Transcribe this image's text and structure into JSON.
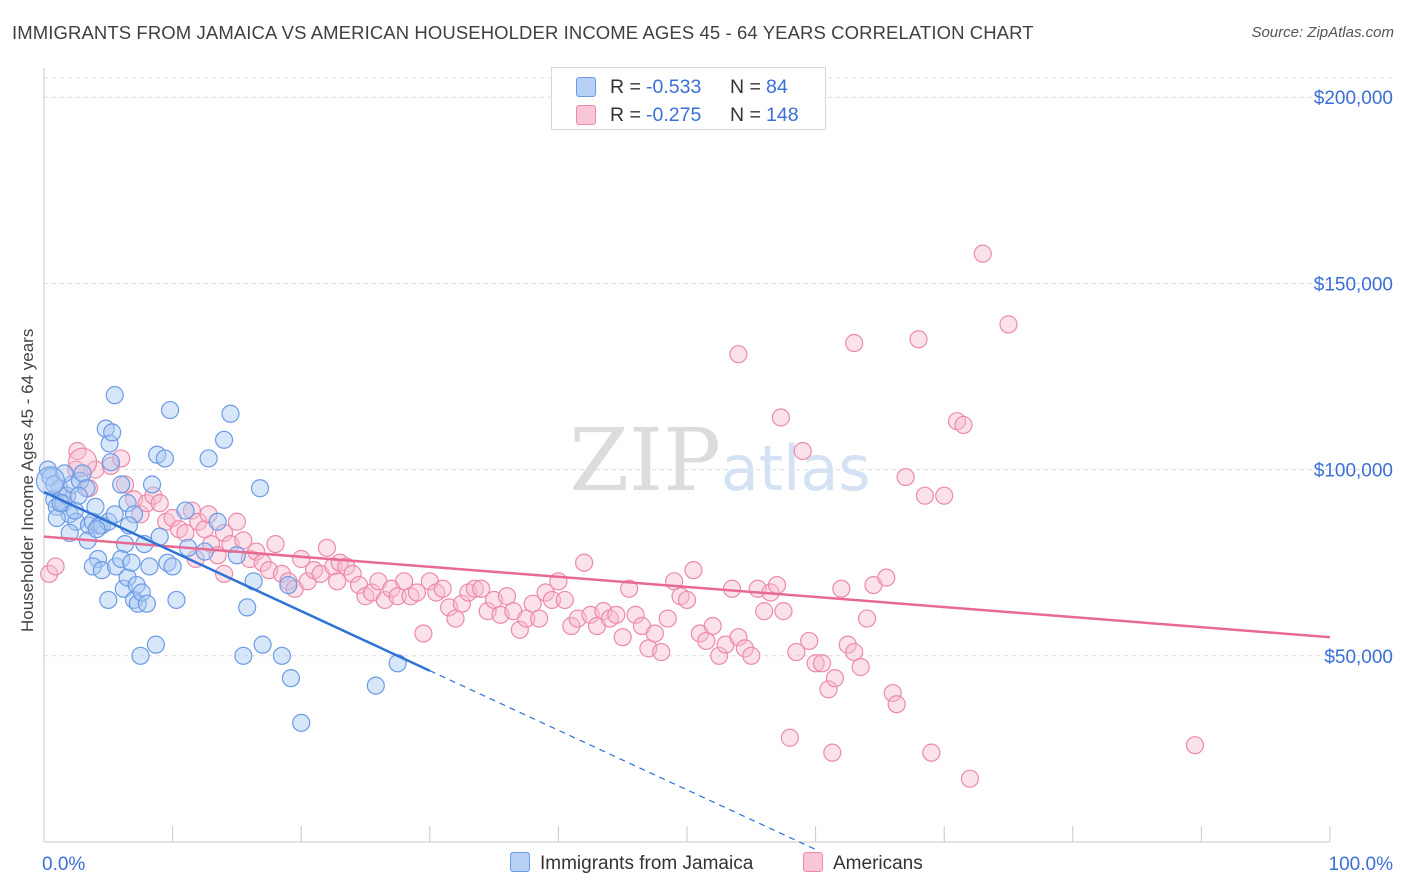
{
  "title": "IMMIGRANTS FROM JAMAICA VS AMERICAN HOUSEHOLDER INCOME AGES 45 - 64 YEARS CORRELATION CHART",
  "source": "Source: ZipAtlas.com",
  "watermark": "ZIPatlas",
  "colors": {
    "blue": "#6b9be6",
    "blue_fill": "#a9c7f2",
    "blue_line": "#2f73d6",
    "pink": "#ec8aaa",
    "pink_fill": "#f6bccf",
    "pink_line": "#e86a93",
    "axis_text": "#3a6fd8",
    "grid": "#dcdcdc"
  },
  "legend": {
    "rows": [
      {
        "r_label": "R =",
        "r_value": "-0.533",
        "n_label": "N =",
        "n_value": "84"
      },
      {
        "r_label": "R =",
        "r_value": "-0.275",
        "n_label": "N =",
        "n_value": "148"
      }
    ]
  },
  "bottom_legend": {
    "series1": "Immigrants from Jamaica",
    "series2": "Americans"
  },
  "chart_data": {
    "type": "scatter",
    "title": "IMMIGRANTS FROM JAMAICA VS AMERICAN HOUSEHOLDER INCOME AGES 45 - 64 YEARS CORRELATION CHART",
    "xlabel": "",
    "ylabel": "Householder Income Ages 45 - 64 years",
    "xlim": [
      0,
      100
    ],
    "ylim": [
      0,
      210000
    ],
    "x_tick_labels": [
      "0.0%",
      "100.0%"
    ],
    "y_ticks": [
      50000,
      100000,
      150000,
      200000
    ],
    "y_tick_labels": [
      "$50,000",
      "$100,000",
      "$150,000",
      "$200,000"
    ],
    "grid": true,
    "legend_placement": "top-center",
    "series": [
      {
        "name": "Immigrants from Jamaica",
        "R": -0.533,
        "N": 84,
        "trend": {
          "x0": 0,
          "y0": 94000,
          "x1": 30,
          "y1": 46000,
          "dash_to_x": 60
        },
        "points": [
          [
            0.3,
            100000
          ],
          [
            0.5,
            98000
          ],
          [
            0.8,
            92000
          ],
          [
            1.0,
            90000
          ],
          [
            1.2,
            95000
          ],
          [
            1.5,
            91000
          ],
          [
            1.8,
            93000
          ],
          [
            2.0,
            88000
          ],
          [
            2.2,
            96000
          ],
          [
            2.5,
            86000
          ],
          [
            2.8,
            97000
          ],
          [
            3.0,
            99000
          ],
          [
            3.3,
            95000
          ],
          [
            3.5,
            85000
          ],
          [
            3.8,
            86000
          ],
          [
            4.0,
            90000
          ],
          [
            4.3,
            85000
          ],
          [
            4.5,
            85000
          ],
          [
            4.8,
            111000
          ],
          [
            5.0,
            86000
          ],
          [
            5.2,
            102000
          ],
          [
            5.5,
            88000
          ],
          [
            5.1,
            107000
          ],
          [
            5.3,
            110000
          ],
          [
            5.5,
            120000
          ],
          [
            6.0,
            96000
          ],
          [
            6.3,
            80000
          ],
          [
            6.5,
            91000
          ],
          [
            7.0,
            88000
          ],
          [
            4.2,
            76000
          ],
          [
            3.8,
            74000
          ],
          [
            4.5,
            73000
          ],
          [
            5.0,
            65000
          ],
          [
            5.6,
            74000
          ],
          [
            6.0,
            76000
          ],
          [
            6.2,
            68000
          ],
          [
            6.5,
            71000
          ],
          [
            6.8,
            75000
          ],
          [
            7.0,
            65000
          ],
          [
            7.2,
            69000
          ],
          [
            7.3,
            64000
          ],
          [
            7.8,
            80000
          ],
          [
            7.6,
            67000
          ],
          [
            8.0,
            64000
          ],
          [
            8.4,
            96000
          ],
          [
            8.2,
            74000
          ],
          [
            8.7,
            53000
          ],
          [
            8.8,
            104000
          ],
          [
            9.4,
            103000
          ],
          [
            9.6,
            75000
          ],
          [
            9.8,
            116000
          ],
          [
            10.3,
            65000
          ],
          [
            11.0,
            89000
          ],
          [
            11.2,
            79000
          ],
          [
            7.5,
            50000
          ],
          [
            12.5,
            78000
          ],
          [
            12.8,
            103000
          ],
          [
            13.5,
            86000
          ],
          [
            14.0,
            108000
          ],
          [
            14.5,
            115000
          ],
          [
            15.0,
            77000
          ],
          [
            15.5,
            50000
          ],
          [
            15.8,
            63000
          ],
          [
            16.3,
            70000
          ],
          [
            16.8,
            95000
          ],
          [
            17.0,
            53000
          ],
          [
            18.5,
            50000
          ],
          [
            19.2,
            44000
          ],
          [
            19.0,
            69000
          ],
          [
            20.0,
            32000
          ],
          [
            25.8,
            42000
          ],
          [
            27.5,
            48000
          ],
          [
            1.0,
            87000
          ],
          [
            1.3,
            91000
          ],
          [
            2.4,
            89000
          ],
          [
            2.7,
            93000
          ],
          [
            3.4,
            81000
          ],
          [
            0.8,
            96000
          ],
          [
            1.6,
            99000
          ],
          [
            6.6,
            85000
          ],
          [
            10.0,
            74000
          ],
          [
            4.1,
            84000
          ],
          [
            9.0,
            82000
          ],
          [
            2.0,
            83000
          ]
        ]
      },
      {
        "name": "Americans",
        "R": -0.275,
        "N": 148,
        "trend": {
          "x0": 0,
          "y0": 82000,
          "x1": 100,
          "y1": 55000
        },
        "points": [
          [
            0.4,
            72000
          ],
          [
            0.9,
            74000
          ],
          [
            1.5,
            93000
          ],
          [
            2.5,
            100000
          ],
          [
            2.6,
            105000
          ],
          [
            3.5,
            95000
          ],
          [
            4.0,
            100000
          ],
          [
            5.2,
            101000
          ],
          [
            6.0,
            103000
          ],
          [
            6.3,
            96000
          ],
          [
            7.0,
            92000
          ],
          [
            7.5,
            88000
          ],
          [
            8.0,
            91000
          ],
          [
            8.5,
            93000
          ],
          [
            9.0,
            91000
          ],
          [
            9.5,
            86000
          ],
          [
            10.0,
            87000
          ],
          [
            10.5,
            84000
          ],
          [
            11.0,
            83000
          ],
          [
            11.5,
            89000
          ],
          [
            12.0,
            86000
          ],
          [
            12.5,
            84000
          ],
          [
            12.8,
            88000
          ],
          [
            13.0,
            80000
          ],
          [
            13.5,
            77000
          ],
          [
            14.0,
            83000
          ],
          [
            14.5,
            80000
          ],
          [
            15.0,
            86000
          ],
          [
            15.5,
            81000
          ],
          [
            16.0,
            76000
          ],
          [
            16.5,
            78000
          ],
          [
            17.0,
            75000
          ],
          [
            17.5,
            73000
          ],
          [
            18.0,
            80000
          ],
          [
            18.5,
            72000
          ],
          [
            19.0,
            70000
          ],
          [
            19.5,
            68000
          ],
          [
            20.0,
            76000
          ],
          [
            20.5,
            70000
          ],
          [
            21.0,
            73000
          ],
          [
            21.5,
            72000
          ],
          [
            22.0,
            79000
          ],
          [
            22.5,
            74000
          ],
          [
            23.0,
            75000
          ],
          [
            23.5,
            74000
          ],
          [
            24.0,
            72000
          ],
          [
            24.5,
            69000
          ],
          [
            25.0,
            66000
          ],
          [
            25.5,
            67000
          ],
          [
            26.0,
            70000
          ],
          [
            26.5,
            65000
          ],
          [
            27.0,
            68000
          ],
          [
            27.5,
            66000
          ],
          [
            28.0,
            70000
          ],
          [
            28.5,
            66000
          ],
          [
            29.0,
            67000
          ],
          [
            29.5,
            56000
          ],
          [
            30.0,
            70000
          ],
          [
            30.5,
            67000
          ],
          [
            31.0,
            68000
          ],
          [
            31.5,
            63000
          ],
          [
            32.0,
            60000
          ],
          [
            32.5,
            64000
          ],
          [
            33.0,
            67000
          ],
          [
            33.5,
            68000
          ],
          [
            34.0,
            68000
          ],
          [
            34.5,
            62000
          ],
          [
            35.0,
            65000
          ],
          [
            35.5,
            61000
          ],
          [
            36.0,
            66000
          ],
          [
            36.5,
            62000
          ],
          [
            37.0,
            57000
          ],
          [
            37.5,
            60000
          ],
          [
            38.0,
            64000
          ],
          [
            38.5,
            60000
          ],
          [
            39.0,
            67000
          ],
          [
            39.5,
            65000
          ],
          [
            40.0,
            70000
          ],
          [
            40.5,
            65000
          ],
          [
            41.0,
            58000
          ],
          [
            41.5,
            60000
          ],
          [
            42.0,
            75000
          ],
          [
            42.5,
            61000
          ],
          [
            43.0,
            58000
          ],
          [
            43.5,
            62000
          ],
          [
            44.0,
            60000
          ],
          [
            44.5,
            61000
          ],
          [
            45.0,
            55000
          ],
          [
            45.5,
            68000
          ],
          [
            46.0,
            61000
          ],
          [
            46.5,
            58000
          ],
          [
            47.0,
            52000
          ],
          [
            47.5,
            56000
          ],
          [
            48.0,
            51000
          ],
          [
            48.5,
            60000
          ],
          [
            49.0,
            70000
          ],
          [
            49.5,
            66000
          ],
          [
            50.0,
            65000
          ],
          [
            50.5,
            73000
          ],
          [
            51.0,
            56000
          ],
          [
            51.5,
            54000
          ],
          [
            52.0,
            58000
          ],
          [
            52.5,
            50000
          ],
          [
            53.0,
            53000
          ],
          [
            53.5,
            68000
          ],
          [
            54.0,
            55000
          ],
          [
            54.5,
            52000
          ],
          [
            55.0,
            50000
          ],
          [
            55.5,
            68000
          ],
          [
            56.0,
            62000
          ],
          [
            56.5,
            67000
          ],
          [
            57.0,
            69000
          ],
          [
            57.3,
            114000
          ],
          [
            57.5,
            62000
          ],
          [
            58.0,
            28000
          ],
          [
            58.5,
            51000
          ],
          [
            59.0,
            105000
          ],
          [
            59.5,
            54000
          ],
          [
            60.0,
            48000
          ],
          [
            60.5,
            48000
          ],
          [
            61.0,
            41000
          ],
          [
            61.5,
            44000
          ],
          [
            62.0,
            68000
          ],
          [
            62.5,
            53000
          ],
          [
            63.0,
            51000
          ],
          [
            63.5,
            47000
          ],
          [
            64.0,
            60000
          ],
          [
            64.5,
            69000
          ],
          [
            65.5,
            71000
          ],
          [
            66.0,
            40000
          ],
          [
            66.3,
            37000
          ],
          [
            67.0,
            98000
          ],
          [
            68.5,
            93000
          ],
          [
            69.0,
            24000
          ],
          [
            70.0,
            93000
          ],
          [
            71.0,
            113000
          ],
          [
            71.5,
            112000
          ],
          [
            72.0,
            17000
          ],
          [
            73.0,
            158000
          ],
          [
            75.0,
            139000
          ],
          [
            68.0,
            135000
          ],
          [
            63.0,
            134000
          ],
          [
            54.0,
            131000
          ],
          [
            89.5,
            26000
          ],
          [
            14.0,
            72000
          ],
          [
            11.8,
            76000
          ],
          [
            22.8,
            70000
          ],
          [
            61.3,
            24000
          ]
        ]
      }
    ]
  }
}
